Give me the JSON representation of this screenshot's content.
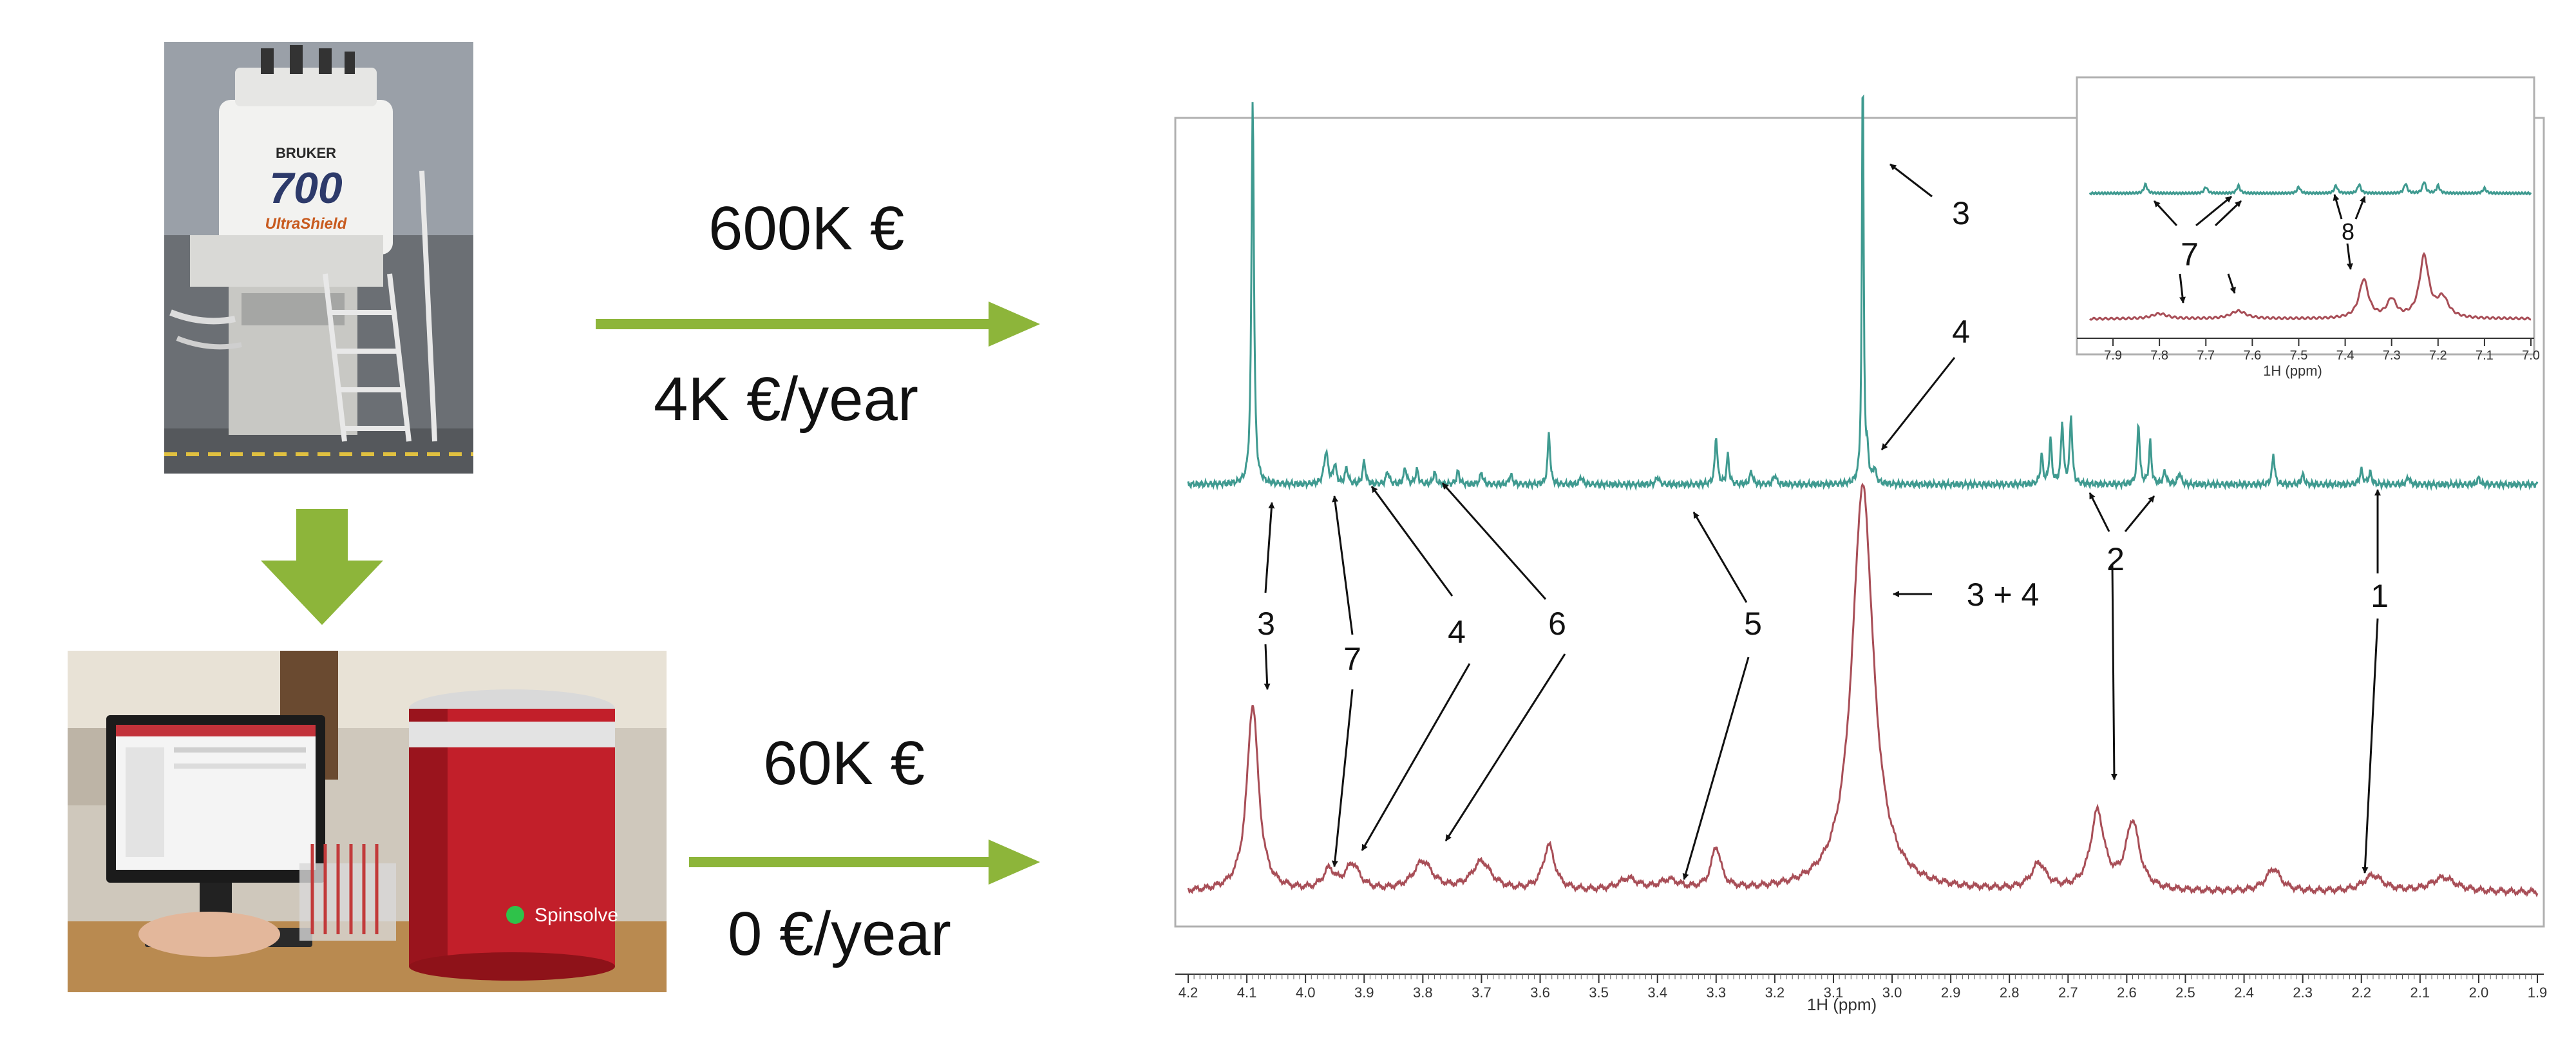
{
  "high_field": {
    "brand_text": "BRUKER",
    "model_text": "700",
    "shield_text": "UltraShield",
    "price": "600K €",
    "running_cost": "4K €/year"
  },
  "benchtop": {
    "brand_text": "Spinsolve",
    "price": "60K €",
    "running_cost": "0 €/year"
  },
  "spectrum": {
    "x_axis_title": "1H (ppm)",
    "x_ticks": [
      "4.2",
      "4.1",
      "4.0",
      "3.9",
      "3.8",
      "3.7",
      "3.6",
      "3.5",
      "3.4",
      "3.3",
      "3.2",
      "3.1",
      "3.0",
      "2.9",
      "2.8",
      "2.7",
      "2.6",
      "2.5",
      "2.4",
      "2.3",
      "2.2",
      "2.1",
      "2.0",
      "1.9"
    ],
    "inset_x_axis_title": "1H (ppm)",
    "inset_ticks": [
      "7.9",
      "7.8",
      "7.7",
      "7.6",
      "7.5",
      "7.4",
      "7.3",
      "7.2",
      "7.1",
      "7.0"
    ],
    "labels": {
      "top_3": "3",
      "top_4": "4",
      "combined": "3 + 4",
      "l2": "2",
      "l1": "1",
      "l3": "3",
      "l7": "7",
      "l4": "4",
      "l6": "6",
      "l5": "5",
      "inset_7": "7",
      "inset_8": "8"
    },
    "colors": {
      "high_field_trace": "#3f9a90",
      "benchtop_trace": "#a84e57",
      "arrow_green": "#8db53a"
    }
  }
}
